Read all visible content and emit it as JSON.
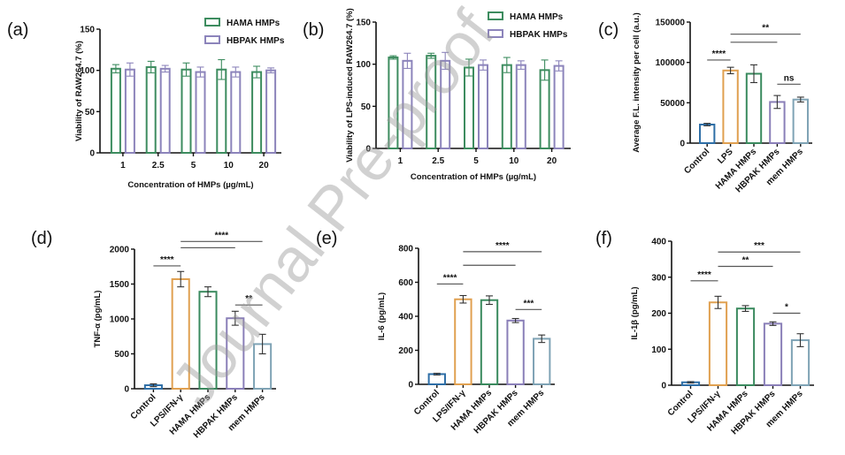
{
  "watermark": "Journal Pre-proof",
  "chart_data": [
    {
      "panel": "(a)",
      "type": "bar",
      "xlabel": "Concentration of HMPs (µg/mL)",
      "ylabel": "Viability of RAW264.7 (%)",
      "ylim": [
        0,
        150
      ],
      "yticks": [
        0,
        50,
        100,
        150
      ],
      "categories": [
        "1",
        "2.5",
        "5",
        "10",
        "20"
      ],
      "legend": "top-right",
      "series": [
        {
          "name": "HAMA HMPs",
          "color": "#3d8c5f",
          "values": [
            102,
            104,
            101,
            101,
            98
          ],
          "errors": [
            5,
            7,
            8,
            12,
            7
          ]
        },
        {
          "name": "HBPAK HMPs",
          "color": "#8c84bb",
          "values": [
            101,
            102,
            98,
            98,
            100
          ],
          "errors": [
            8,
            4,
            6,
            6,
            3
          ]
        }
      ]
    },
    {
      "panel": "(b)",
      "type": "bar",
      "xlabel": "Concentration of HMPs (µg/mL)",
      "ylabel": "Viability of LPS-induced RAW264.7 (%)",
      "ylim": [
        0,
        150
      ],
      "yticks": [
        0,
        50,
        100,
        150
      ],
      "categories": [
        "1",
        "2.5",
        "5",
        "10",
        "20"
      ],
      "legend": "top-right",
      "series": [
        {
          "name": "HAMA HMPs",
          "color": "#3d8c5f",
          "values": [
            108,
            110,
            96,
            99,
            93
          ],
          "errors": [
            2,
            3,
            10,
            9,
            12
          ]
        },
        {
          "name": "HBPAK HMPs",
          "color": "#8c84bb",
          "values": [
            104,
            104,
            99,
            99,
            98
          ],
          "errors": [
            9,
            10,
            6,
            5,
            6
          ]
        }
      ]
    },
    {
      "panel": "(c)",
      "type": "bar",
      "xlabel": "",
      "ylabel": "Average F.L. intensity per cell (a.u.)",
      "ylim": [
        0,
        150000
      ],
      "yticks": [
        0,
        50000,
        100000,
        150000
      ],
      "categories": [
        "Control",
        "LPS",
        "HAMA HMPs",
        "HBPAK HMPs",
        "mem HMPs"
      ],
      "colors": [
        "#2e6ea6",
        "#e0a050",
        "#3a8a5e",
        "#8a7fb8",
        "#7fa3b5"
      ],
      "values": [
        23000,
        90000,
        86000,
        51000,
        54000
      ],
      "errors": [
        1500,
        4000,
        11000,
        8000,
        3000
      ],
      "significance": [
        {
          "from": 0,
          "to": 1,
          "y": 103000,
          "label": "****"
        },
        {
          "from": 1,
          "to": 3,
          "y": 125000,
          "label": ""
        },
        {
          "from": 1,
          "to": 4,
          "y": 135000,
          "label": "**"
        },
        {
          "from": 3,
          "to": 4,
          "y": 73000,
          "label": "ns"
        }
      ]
    },
    {
      "panel": "(d)",
      "type": "bar",
      "xlabel": "",
      "ylabel": "TNF-α (pg/mL)",
      "ylim": [
        0,
        2000
      ],
      "yticks": [
        0,
        500,
        1000,
        1500,
        2000
      ],
      "categories": [
        "Control",
        "LPS/IFN-γ",
        "HAMA HMPs",
        "HBPAK HMPs",
        "mem HMPs"
      ],
      "colors": [
        "#2e6ea6",
        "#e0a050",
        "#3a8a5e",
        "#8a7fb8",
        "#7fa3b5"
      ],
      "values": [
        50,
        1570,
        1390,
        1010,
        640
      ],
      "errors": [
        20,
        110,
        70,
        100,
        140
      ],
      "significance": [
        {
          "from": 0,
          "to": 1,
          "y": 1760,
          "label": "****"
        },
        {
          "from": 1,
          "to": 3,
          "y": 2020,
          "label": ""
        },
        {
          "from": 1,
          "to": 4,
          "y": 2110,
          "label": "****"
        },
        {
          "from": 3,
          "to": 4,
          "y": 1200,
          "label": "**"
        }
      ]
    },
    {
      "panel": "(e)",
      "type": "bar",
      "xlabel": "",
      "ylabel": "IL-6 (pg/mL)",
      "ylim": [
        0,
        800
      ],
      "yticks": [
        0,
        200,
        400,
        600,
        800
      ],
      "categories": [
        "Control",
        "LPS/IFN-γ",
        "HAMA HMPs",
        "HBPAK HMPs",
        "mem HMPs"
      ],
      "colors": [
        "#2e6ea6",
        "#e0a050",
        "#3a8a5e",
        "#8a7fb8",
        "#7fa3b5"
      ],
      "values": [
        60,
        500,
        495,
        375,
        268
      ],
      "errors": [
        5,
        22,
        25,
        12,
        22
      ],
      "significance": [
        {
          "from": 0,
          "to": 1,
          "y": 590,
          "label": "****"
        },
        {
          "from": 1,
          "to": 3,
          "y": 700,
          "label": ""
        },
        {
          "from": 1,
          "to": 4,
          "y": 780,
          "label": "****"
        },
        {
          "from": 3,
          "to": 4,
          "y": 440,
          "label": "***"
        }
      ]
    },
    {
      "panel": "(f)",
      "type": "bar",
      "xlabel": "",
      "ylabel": "IL-1β (pg/mL)",
      "ylim": [
        0,
        400
      ],
      "yticks": [
        0,
        100,
        200,
        300,
        400
      ],
      "categories": [
        "Control",
        "LPS/IFN-γ",
        "HAMA HMPs",
        "HBPAK HMPs",
        "mem HMPs"
      ],
      "colors": [
        "#2e6ea6",
        "#e0a050",
        "#3a8a5e",
        "#8a7fb8",
        "#7fa3b5"
      ],
      "values": [
        8,
        230,
        213,
        171,
        125
      ],
      "errors": [
        2,
        17,
        8,
        5,
        18
      ],
      "significance": [
        {
          "from": 0,
          "to": 1,
          "y": 290,
          "label": "****"
        },
        {
          "from": 1,
          "to": 3,
          "y": 330,
          "label": "**"
        },
        {
          "from": 1,
          "to": 4,
          "y": 370,
          "label": "***"
        },
        {
          "from": 3,
          "to": 4,
          "y": 200,
          "label": "*"
        }
      ]
    }
  ]
}
